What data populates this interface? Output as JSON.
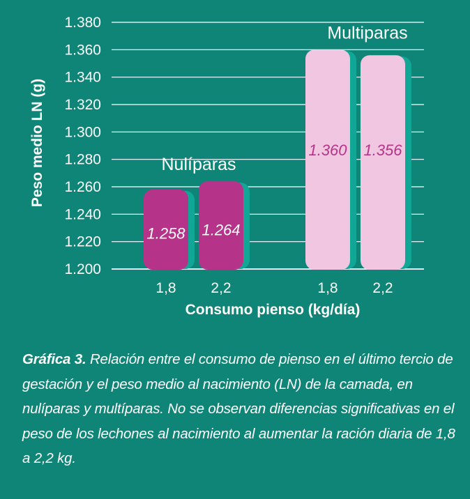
{
  "chart_data": {
    "type": "bar",
    "ylabel": "Peso medio LN (g)",
    "xlabel": "Consumo pienso (kg/día)",
    "ylim": [
      1.2,
      1.38
    ],
    "yticks": [
      "1.200",
      "1.220",
      "1.240",
      "1.260",
      "1.280",
      "1.300",
      "1.320",
      "1.340",
      "1.360",
      "1.380"
    ],
    "grid": "horizontal",
    "groups": [
      {
        "name": "Nulíparas",
        "color": "#b5348a",
        "label_color": "#ffffff",
        "categories": [
          "1,8",
          "2,2"
        ],
        "values": [
          1.258,
          1.264
        ],
        "labels": [
          "1.258",
          "1.264"
        ]
      },
      {
        "name": "Multiparas",
        "color": "#f0c6e0",
        "label_color": "#b5348a",
        "categories": [
          "1,8",
          "2,2"
        ],
        "values": [
          1.36,
          1.356
        ],
        "labels": [
          "1.360",
          "1.356"
        ]
      }
    ]
  },
  "caption": {
    "label": "Gráfica 3.",
    "text": " Relación entre el consumo de pienso en el último tercio de gestación y el peso medio al nacimiento (LN) de la camada, en nulíparas y multíparas. No se observan diferencias significativas en el peso de los lechones al nacimiento al aumentar la ración diaria de 1,8 a 2,2 kg."
  },
  "colors": {
    "background": "#0f8577",
    "shadow": "#11a796",
    "axis": "#ffffff"
  }
}
